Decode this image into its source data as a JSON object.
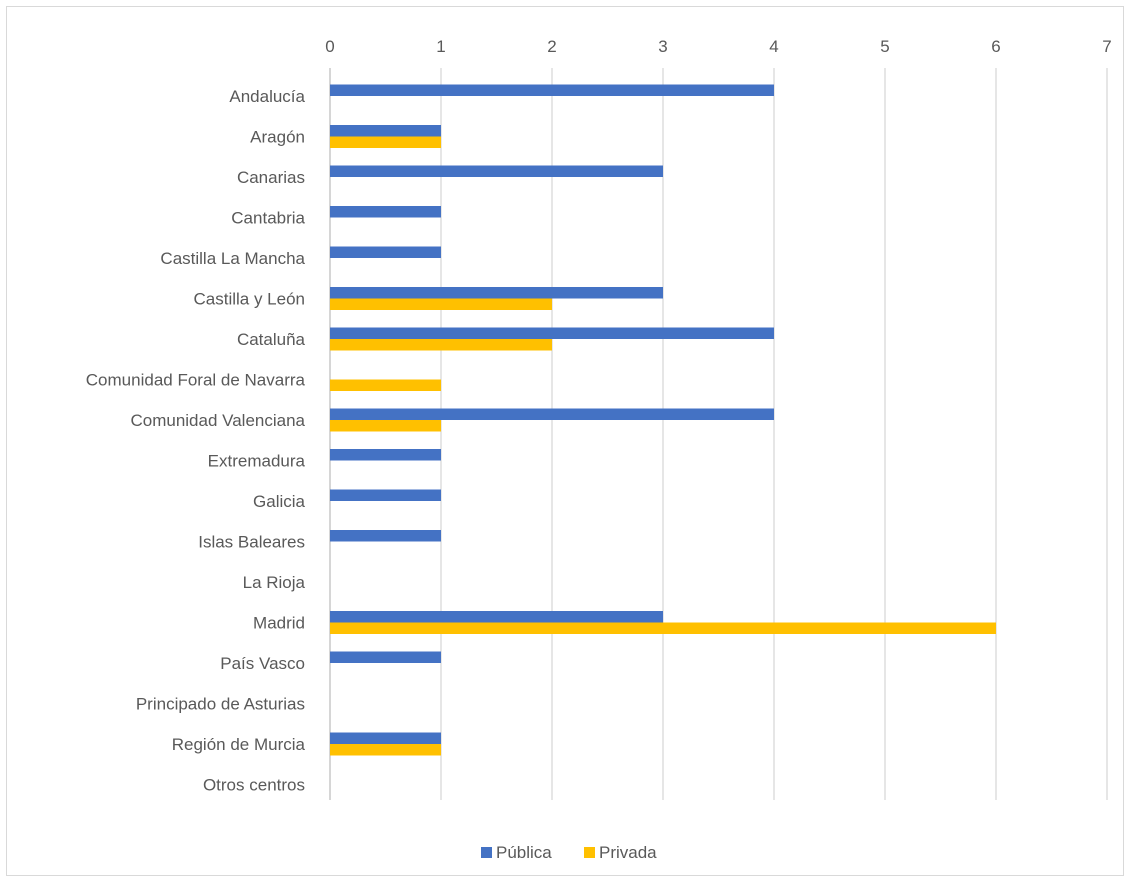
{
  "chart_data": {
    "type": "bar",
    "orientation": "horizontal",
    "categories": [
      "Andalucía",
      "Aragón",
      "Canarias",
      "Cantabria",
      "Castilla La Mancha",
      "Castilla y León",
      "Cataluña",
      "Comunidad Foral de Navarra",
      "Comunidad Valenciana",
      "Extremadura",
      "Galicia",
      "Islas Baleares",
      "La Rioja",
      "Madrid",
      "País Vasco",
      "Principado de Asturias",
      "Región de Murcia",
      "Otros centros"
    ],
    "series": [
      {
        "name": "Pública",
        "color": "#4472C4",
        "values": [
          4,
          1,
          3,
          1,
          1,
          3,
          4,
          0,
          4,
          1,
          1,
          1,
          0,
          3,
          1,
          0,
          1,
          0
        ]
      },
      {
        "name": "Privada",
        "color": "#FFC000",
        "values": [
          0,
          1,
          0,
          0,
          0,
          2,
          2,
          1,
          1,
          0,
          0,
          0,
          0,
          6,
          0,
          0,
          1,
          0
        ]
      }
    ],
    "xlim": [
      0,
      7
    ],
    "x_ticks": [
      "0",
      "1",
      "2",
      "3",
      "4",
      "5",
      "6",
      "7"
    ],
    "x_axis_position": "top",
    "grid": "vertical",
    "legend": "bottom",
    "title": "",
    "xlabel": "",
    "ylabel": ""
  }
}
